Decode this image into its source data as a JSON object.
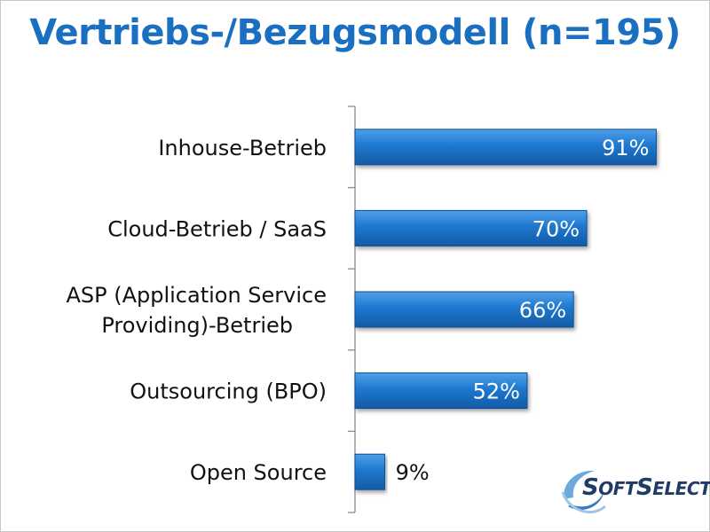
{
  "title": "Vertriebs-/Bezugsmodell (n=195)",
  "colors": {
    "title": "#1a6fc0",
    "bar": "#1f78cf",
    "bar_dark": "#0f4f95"
  },
  "chart_data": {
    "type": "bar",
    "orientation": "horizontal",
    "categories": [
      [
        "Inhouse-Betrieb"
      ],
      [
        "Cloud-Betrieb / SaaS"
      ],
      [
        "ASP (Application Service",
        "Providing)-Betrieb"
      ],
      [
        "Outsourcing (BPO)"
      ],
      [
        "Open Source"
      ]
    ],
    "values": [
      91,
      70,
      66,
      52,
      9
    ],
    "value_labels": [
      "91%",
      "70%",
      "66%",
      "52%",
      "9%"
    ],
    "xlim": [
      0,
      100
    ],
    "grid": false,
    "legend": "none"
  },
  "logo": {
    "first_letter": "S",
    "text": "OFT",
    "second_letter": "S",
    "text2": "ELECT",
    "mark": "®"
  }
}
